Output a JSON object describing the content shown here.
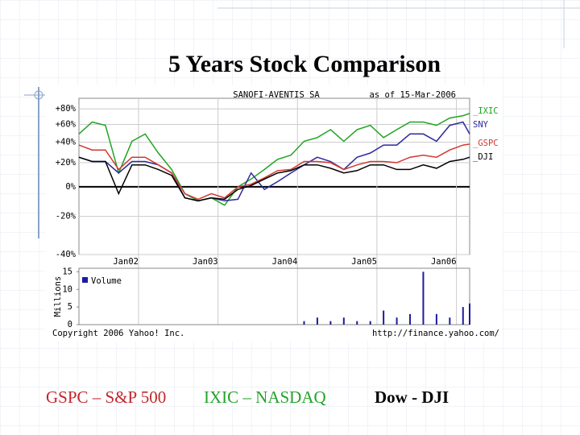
{
  "slide": {
    "title": "5 Years Stock Comparison",
    "footer": [
      {
        "text": "GSPC – S&P 500",
        "color": "#c0272d"
      },
      {
        "text": "IXIC – NASDAQ",
        "color": "#22a32a"
      },
      {
        "text": "Dow - DJI",
        "color": "#000000"
      }
    ]
  },
  "chart_data": [
    {
      "type": "line",
      "title": "SANOFI-AVENTIS SA",
      "subtitle": "as of 15-Mar-2006",
      "y_scale": "log",
      "grid": true,
      "x": [
        "2001-04",
        "2001-06",
        "2001-08",
        "2001-10",
        "2001-12",
        "2002-02",
        "2002-04",
        "2002-06",
        "2002-08",
        "2002-10",
        "2002-12",
        "2003-02",
        "2003-04",
        "2003-06",
        "2003-08",
        "2003-10",
        "2003-12",
        "2004-02",
        "2004-04",
        "2004-06",
        "2004-08",
        "2004-10",
        "2004-12",
        "2005-02",
        "2005-04",
        "2005-06",
        "2005-08",
        "2005-10",
        "2005-12",
        "2006-02",
        "2006-03"
      ],
      "xlim": [
        "2001-04",
        "2006-03"
      ],
      "xticks": [
        {
          "value": "2002-01",
          "label": "Jan02"
        },
        {
          "value": "2003-01",
          "label": "Jan03"
        },
        {
          "value": "2004-01",
          "label": "Jan04"
        },
        {
          "value": "2005-01",
          "label": "Jan05"
        },
        {
          "value": "2006-01",
          "label": "Jan06"
        }
      ],
      "ylim": [
        -40,
        95
      ],
      "yticks": [
        {
          "value": 80,
          "label": "+80%"
        },
        {
          "value": 60,
          "label": "+60%"
        },
        {
          "value": 40,
          "label": "+40%"
        },
        {
          "value": 20,
          "label": "+20%"
        },
        {
          "value": 0,
          "label": "0%"
        },
        {
          "value": -20,
          "label": "-20%"
        },
        {
          "value": -40,
          "label": "-40%"
        }
      ],
      "series": [
        {
          "name": "_IXIC",
          "color": "#1fa51f",
          "values": [
            49,
            63,
            59,
            11,
            41,
            49,
            29,
            14,
            -5,
            -10,
            -8,
            -13,
            0,
            6,
            14,
            23,
            27,
            41,
            45,
            54,
            41,
            54,
            59,
            45,
            54,
            63,
            63,
            59,
            68,
            71,
            74
          ]
        },
        {
          "name": "SNY",
          "color": "#2a2a9c",
          "values": [
            25,
            21,
            21,
            11,
            21,
            21,
            18,
            11,
            -8,
            -10,
            -8,
            -10,
            -9,
            11,
            -2,
            4,
            11,
            18,
            25,
            21,
            14,
            25,
            29,
            37,
            37,
            49,
            49,
            41,
            59,
            63,
            49
          ]
        },
        {
          "name": "_GSPC",
          "color": "#d2382f",
          "values": [
            37,
            32,
            32,
            14,
            25,
            25,
            18,
            11,
            -5,
            -9,
            -5,
            -8,
            0,
            2,
            7,
            13,
            14,
            21,
            21,
            20,
            14,
            18,
            21,
            21,
            20,
            25,
            27,
            25,
            32,
            37,
            38
          ]
        },
        {
          "name": "_DJI",
          "color": "#000000",
          "values": [
            25,
            21,
            21,
            -5,
            18,
            18,
            14,
            9,
            -8,
            -10,
            -8,
            -9,
            -2,
            1,
            6,
            11,
            13,
            18,
            18,
            15,
            11,
            13,
            18,
            18,
            14,
            14,
            18,
            15,
            21,
            23,
            25
          ]
        }
      ]
    },
    {
      "type": "bar",
      "ylabel": "Millions",
      "legend": "Volume",
      "color": "#1c1c9c",
      "copyright": "Copyright 2006 Yahoo! Inc.",
      "source": "http://finance.yahoo.com/",
      "x": [
        "2001-04",
        "2001-06",
        "2001-08",
        "2001-10",
        "2001-12",
        "2002-02",
        "2002-04",
        "2002-06",
        "2002-08",
        "2002-10",
        "2002-12",
        "2003-02",
        "2003-04",
        "2003-06",
        "2003-08",
        "2003-10",
        "2003-12",
        "2004-02",
        "2004-04",
        "2004-06",
        "2004-08",
        "2004-10",
        "2004-12",
        "2005-02",
        "2005-04",
        "2005-06",
        "2005-08",
        "2005-10",
        "2005-12",
        "2006-02",
        "2006-03"
      ],
      "xlim": [
        "2001-04",
        "2006-03"
      ],
      "values": [
        0,
        0,
        0,
        0,
        0,
        0,
        0,
        0,
        0,
        0,
        0,
        0,
        0,
        0,
        0,
        0,
        0,
        1,
        2,
        1,
        2,
        1,
        1,
        4,
        2,
        3,
        15,
        3,
        2,
        5,
        6
      ],
      "ylim": [
        0,
        16
      ],
      "yticks": [
        0,
        5,
        10,
        15
      ]
    }
  ]
}
